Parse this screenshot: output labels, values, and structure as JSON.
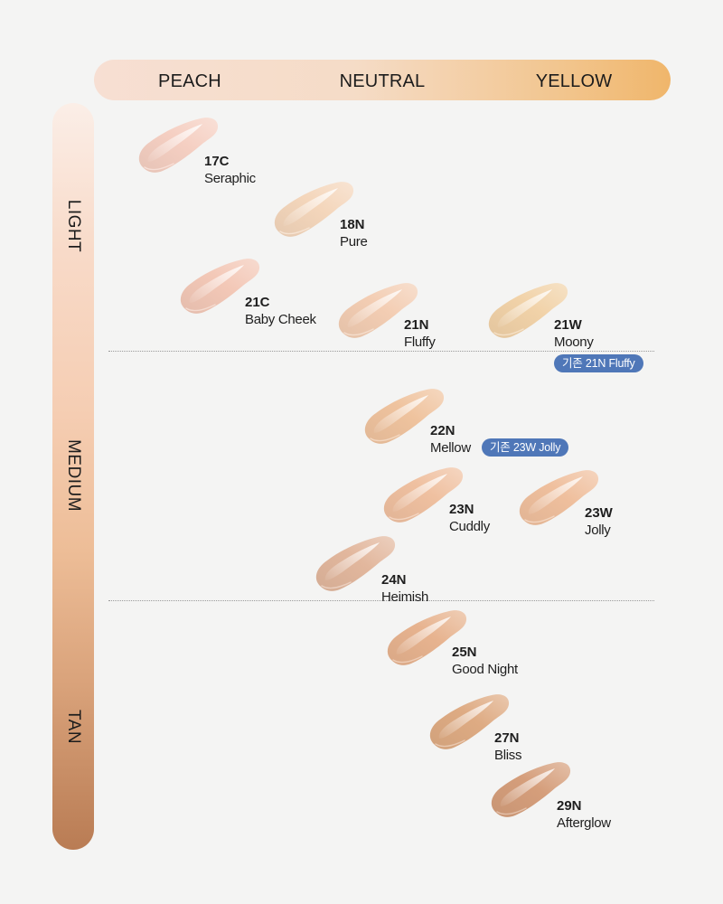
{
  "undertones": [
    "PEACH",
    "NEUTRAL",
    "YELLOW"
  ],
  "depths": [
    "LIGHT",
    "MEDIUM",
    "TAN"
  ],
  "shades": [
    {
      "code": "17C",
      "name": "Seraphic",
      "color": "#f5cfc2"
    },
    {
      "code": "18N",
      "name": "Pure",
      "color": "#f4d6bb"
    },
    {
      "code": "21C",
      "name": "Baby Cheek",
      "color": "#f3c8b7"
    },
    {
      "code": "21N",
      "name": "Fluffy",
      "color": "#f3cdb3"
    },
    {
      "code": "21W",
      "name": "Moony",
      "color": "#f1d2a8"
    },
    {
      "code": "22N",
      "name": "Mellow",
      "color": "#efc39e"
    },
    {
      "code": "23N",
      "name": "Cuddly",
      "color": "#efc0a0"
    },
    {
      "code": "23W",
      "name": "Jolly",
      "color": "#efbf9d"
    },
    {
      "code": "24N",
      "name": "Heimish",
      "color": "#e2b79d"
    },
    {
      "code": "25N",
      "name": "Good Night",
      "color": "#e7b38f"
    },
    {
      "code": "27N",
      "name": "Bliss",
      "color": "#deab83"
    },
    {
      "code": "29N",
      "name": "Afterglow",
      "color": "#d59e7b"
    }
  ],
  "notes": [
    "기존 21N Fluffy",
    "기존 23W Jolly"
  ]
}
